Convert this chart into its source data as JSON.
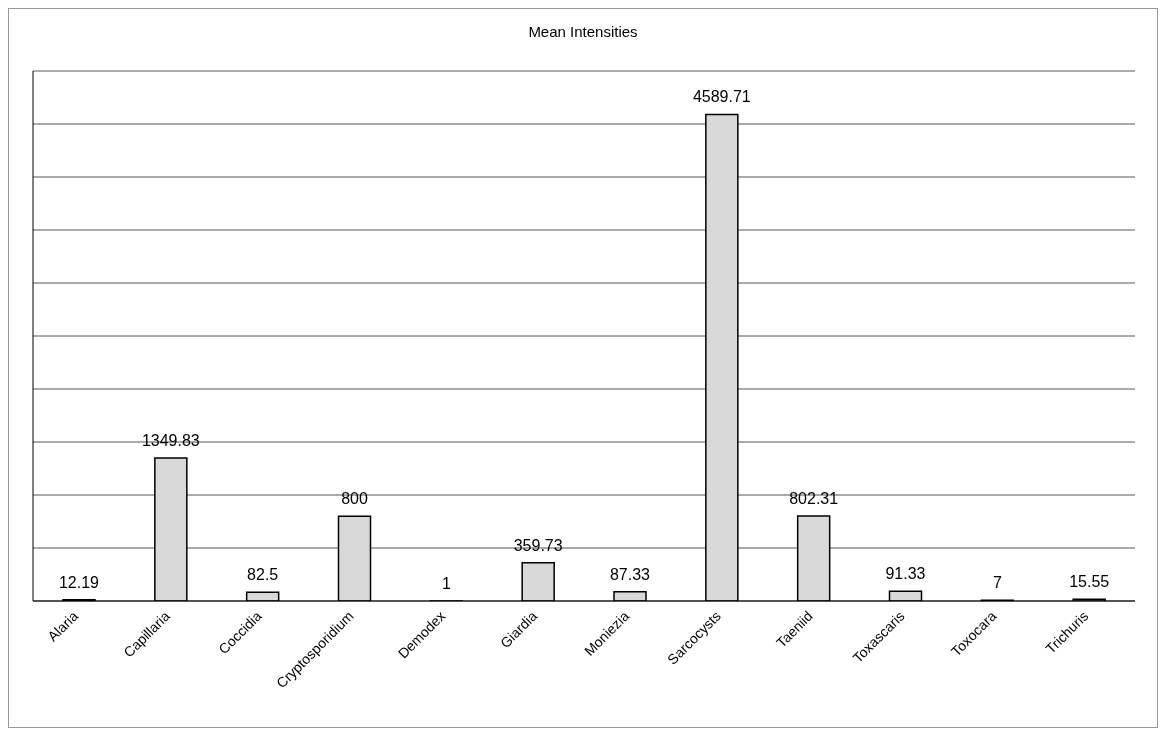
{
  "chart_data": {
    "type": "bar",
    "title": "Mean Intensities",
    "categories": [
      "Alaria",
      "Capillaria",
      "Coccidia",
      "Cryptosporidium",
      "Demodex",
      "Giardia",
      "Moniezia",
      "Sarcocysts",
      "Taeniid",
      "Toxascaris",
      "Toxocara",
      "Trichuris"
    ],
    "values": [
      12.19,
      1349.83,
      82.5,
      800,
      1,
      359.73,
      87.33,
      4589.71,
      802.31,
      91.33,
      7,
      15.55
    ],
    "color": "#d9d9d9",
    "ylim": [
      0,
      5000
    ],
    "grid": "y",
    "legend": false,
    "tick_labels": "x",
    "data_labels": true
  }
}
